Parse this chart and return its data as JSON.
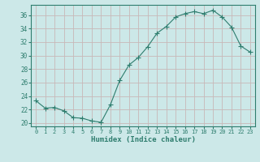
{
  "x": [
    0,
    1,
    2,
    3,
    4,
    5,
    6,
    7,
    8,
    9,
    10,
    11,
    12,
    13,
    14,
    15,
    16,
    17,
    18,
    19,
    20,
    21,
    22,
    23
  ],
  "y": [
    23.3,
    22.2,
    22.3,
    21.8,
    20.8,
    20.7,
    20.3,
    20.1,
    22.7,
    26.3,
    28.6,
    29.7,
    31.3,
    33.3,
    34.3,
    35.7,
    36.2,
    36.5,
    36.2,
    36.7,
    35.7,
    34.2,
    31.4,
    30.5
  ],
  "line_color": "#2e7d6e",
  "marker": "+",
  "marker_size": 4,
  "bg_color": "#cce8e8",
  "grid_color": "#c8b8b8",
  "tick_color": "#2e7d6e",
  "xlabel": "Humidex (Indice chaleur)",
  "xlim": [
    -0.5,
    23.5
  ],
  "ylim": [
    19.5,
    37.5
  ],
  "yticks": [
    20,
    22,
    24,
    26,
    28,
    30,
    32,
    34,
    36
  ],
  "xticks": [
    0,
    1,
    2,
    3,
    4,
    5,
    6,
    7,
    8,
    9,
    10,
    11,
    12,
    13,
    14,
    15,
    16,
    17,
    18,
    19,
    20,
    21,
    22,
    23
  ]
}
